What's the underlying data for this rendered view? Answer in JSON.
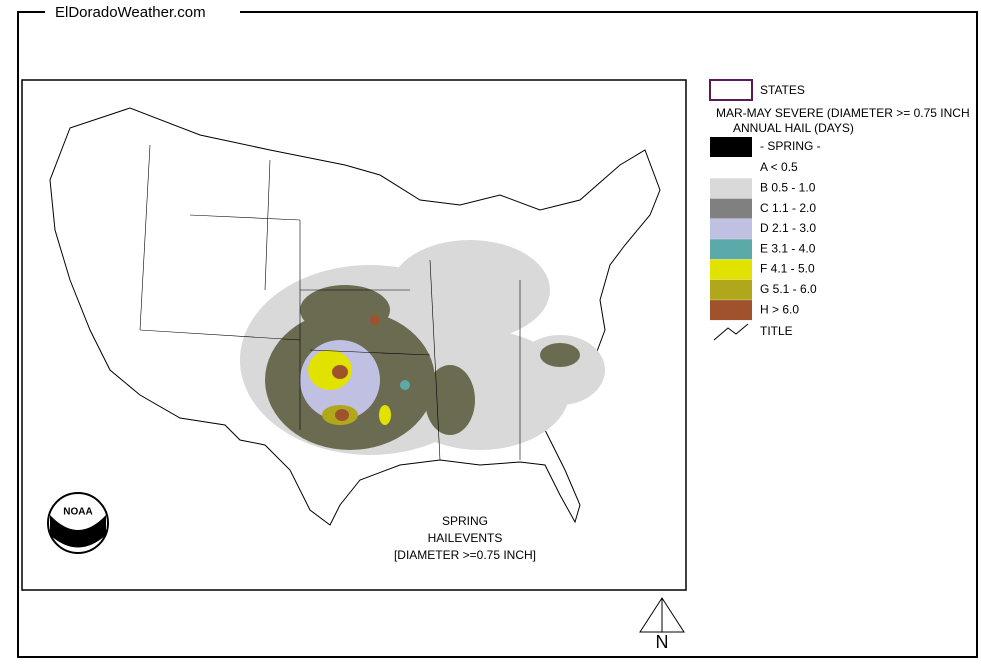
{
  "header": {
    "site": "ElDoradoWeather.com"
  },
  "legend": {
    "states": {
      "label": "STATES",
      "color": "#5a1a5a"
    },
    "heading": [
      "MAR-MAY SEVERE (DIAMETER >= 0.75 INCH",
      "ANNUAL HAIL (DAYS)"
    ],
    "spring": {
      "label": "- SPRING -",
      "color": "#000000"
    },
    "classes": [
      {
        "label": "A < 0.5",
        "color": null
      },
      {
        "label": "B 0.5 - 1.0",
        "color": "#d9d9d9"
      },
      {
        "label": "C 1.1 - 2.0",
        "color": "#808080"
      },
      {
        "label": "D 2.1 - 3.0",
        "color": "#c0c0e2"
      },
      {
        "label": "E 3.1 - 4.0",
        "color": "#5ba9a9"
      },
      {
        "label": "F 4.1 - 5.0",
        "color": "#e2e200"
      },
      {
        "label": "G 5.1 - 6.0",
        "color": "#b0a81a"
      },
      {
        "label": "H > 6.0",
        "color": "#a0522d"
      }
    ],
    "title_label": "TITLE"
  },
  "map": {
    "caption": [
      "SPRING",
      "HAILEVENTS",
      "[DIAMETER >=0.75 INCH]"
    ],
    "north": "N"
  }
}
